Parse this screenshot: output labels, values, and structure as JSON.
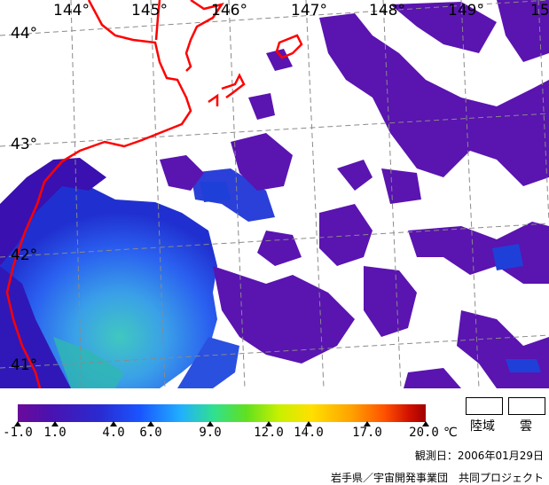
{
  "map": {
    "longitude_labels": [
      "144°",
      "145°",
      "146°",
      "147°",
      "148°",
      "149°",
      "15"
    ],
    "latitude_labels": [
      "44°",
      "43°",
      "42°",
      "41°"
    ],
    "coastline_color": "#ff0000"
  },
  "legend": {
    "ticks": [
      "-1.0",
      "1.0",
      "4.0",
      "6.0",
      "9.0",
      "12.0",
      "14.0",
      "17.0",
      "20.0"
    ],
    "unit": "℃",
    "land_label": "陸域",
    "cloud_label": "雲"
  },
  "footer": {
    "observation_date": "観測日：2006年01月29日",
    "credit": "岩手県／宇宙開発事業団　共同プロジェクト"
  }
}
